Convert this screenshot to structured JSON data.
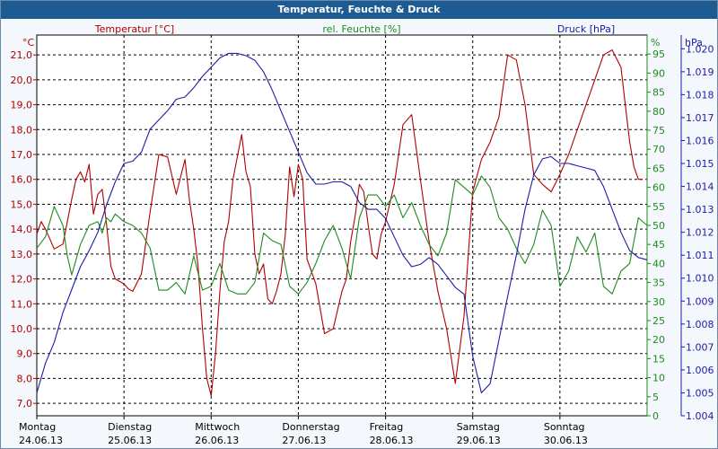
{
  "window": {
    "title": "Temperatur, Feuchte & Druck"
  },
  "colors": {
    "temp": "#b00000",
    "hum": "#1f8a1f",
    "press": "#1c1ca8",
    "grid": "#000000",
    "title_bg": "#1f5b93"
  },
  "chart_data": {
    "type": "line",
    "title": "Temperatur, Feuchte & Druck",
    "series_labels": {
      "temp": "Temperatur [°C]",
      "hum": "rel. Feuchte [%]",
      "press": "Druck [hPa]"
    },
    "units": {
      "temp": "°C",
      "hum": "%",
      "press": "hPa"
    },
    "axes": {
      "temp": {
        "min": 6.5,
        "max": 21.8,
        "ticks": [
          "7,0",
          "8,0",
          "9,0",
          "10,0",
          "11,0",
          "12,0",
          "13,0",
          "14,0",
          "15,0",
          "16,0",
          "17,0",
          "18,0",
          "19,0",
          "20,0",
          "21,0"
        ],
        "tick_values": [
          7,
          8,
          9,
          10,
          11,
          12,
          13,
          14,
          15,
          16,
          17,
          18,
          19,
          20,
          21
        ]
      },
      "hum": {
        "min": 0,
        "max": 100,
        "ticks": [
          "0",
          "5",
          "10",
          "15",
          "20",
          "25",
          "30",
          "35",
          "40",
          "45",
          "50",
          "55",
          "60",
          "65",
          "70",
          "75",
          "80",
          "85",
          "90",
          "95"
        ],
        "tick_values": [
          0,
          5,
          10,
          15,
          20,
          25,
          30,
          35,
          40,
          45,
          50,
          55,
          60,
          65,
          70,
          75,
          80,
          85,
          90,
          95
        ]
      },
      "press": {
        "min": 1004,
        "max": 1020.6,
        "ticks": [
          "1.004",
          "1.005",
          "1.006",
          "1.007",
          "1.008",
          "1.009",
          "1.010",
          "1.011",
          "1.012",
          "1.013",
          "1.014",
          "1.015",
          "1.016",
          "1.017",
          "1.018",
          "1.019",
          "1.020"
        ],
        "tick_values": [
          1004,
          1005,
          1006,
          1007,
          1008,
          1009,
          1010,
          1011,
          1012,
          1013,
          1014,
          1015,
          1016,
          1017,
          1018,
          1019,
          1020
        ]
      }
    },
    "x_range": [
      0,
      7.0
    ],
    "days": [
      {
        "name": "Montag",
        "date": "24.06.13"
      },
      {
        "name": "Dienstag",
        "date": "25.06.13"
      },
      {
        "name": "Mittwoch",
        "date": "26.06.13"
      },
      {
        "name": "Donnerstag",
        "date": "27.06.13"
      },
      {
        "name": "Freitag",
        "date": "28.06.13"
      },
      {
        "name": "Samstag",
        "date": "29.06.13"
      },
      {
        "name": "Sonntag",
        "date": "30.06.13"
      }
    ],
    "series": {
      "temp": {
        "name": "Temperatur [°C]",
        "x": [
          0,
          0.05,
          0.1,
          0.15,
          0.2,
          0.3,
          0.4,
          0.45,
          0.5,
          0.55,
          0.6,
          0.65,
          0.7,
          0.75,
          0.8,
          0.85,
          0.9,
          0.95,
          1.0,
          1.05,
          1.1,
          1.2,
          1.3,
          1.4,
          1.5,
          1.6,
          1.7,
          1.75,
          1.8,
          1.85,
          1.9,
          1.95,
          2.0,
          2.05,
          2.1,
          2.15,
          2.2,
          2.25,
          2.3,
          2.35,
          2.4,
          2.45,
          2.5,
          2.55,
          2.6,
          2.65,
          2.7,
          2.75,
          2.8,
          2.85,
          2.9,
          2.95,
          3.0,
          3.05,
          3.1,
          3.2,
          3.3,
          3.4,
          3.5,
          3.55,
          3.6,
          3.65,
          3.7,
          3.75,
          3.8,
          3.85,
          3.9,
          3.95,
          4.0,
          4.1,
          4.2,
          4.3,
          4.4,
          4.5,
          4.6,
          4.7,
          4.8,
          4.9,
          5.0,
          5.1,
          5.2,
          5.3,
          5.4,
          5.5,
          5.6,
          5.7,
          5.8,
          5.9,
          6.0,
          6.1,
          6.2,
          6.3,
          6.4,
          6.5,
          6.6,
          6.7,
          6.75,
          6.8,
          6.85,
          6.9,
          6.95
        ],
        "values": [
          13.8,
          14.3,
          14.0,
          13.6,
          13.2,
          13.4,
          15.2,
          16.0,
          16.3,
          15.9,
          16.6,
          14.6,
          15.4,
          15.6,
          14.2,
          12.5,
          12.0,
          11.9,
          11.8,
          11.6,
          11.5,
          12.2,
          14.7,
          17.0,
          16.9,
          15.4,
          16.8,
          15.2,
          14.0,
          12.5,
          10.0,
          8.0,
          7.3,
          9.0,
          11.5,
          13.5,
          14.3,
          16.0,
          16.9,
          17.8,
          16.3,
          15.7,
          13.0,
          12.2,
          12.6,
          11.2,
          11.0,
          11.5,
          12.2,
          13.8,
          16.5,
          15.3,
          16.6,
          16.0,
          12.8,
          11.8,
          9.8,
          10.0,
          11.5,
          12.0,
          13.5,
          14.5,
          15.8,
          15.5,
          14.2,
          13.0,
          12.8,
          13.8,
          14.3,
          15.8,
          18.2,
          18.6,
          16.0,
          13.5,
          11.5,
          10.0,
          7.8,
          10.5,
          15.5,
          16.8,
          17.5,
          18.5,
          21.0,
          20.8,
          19.0,
          16.2,
          15.8,
          15.5,
          16.2,
          17.0,
          18.0,
          19.0,
          20.0,
          21.0,
          21.2,
          20.5,
          19.0,
          17.5,
          16.5,
          16.0,
          16.0
        ]
      },
      "hum": {
        "name": "rel. Feuchte [%]",
        "x": [
          0,
          0.1,
          0.2,
          0.3,
          0.35,
          0.4,
          0.5,
          0.6,
          0.7,
          0.75,
          0.8,
          0.85,
          0.9,
          1.0,
          1.1,
          1.2,
          1.3,
          1.4,
          1.5,
          1.6,
          1.7,
          1.8,
          1.9,
          2.0,
          2.1,
          2.2,
          2.3,
          2.4,
          2.5,
          2.6,
          2.7,
          2.8,
          2.9,
          3.0,
          3.1,
          3.2,
          3.3,
          3.4,
          3.5,
          3.6,
          3.7,
          3.8,
          3.9,
          4.0,
          4.1,
          4.2,
          4.3,
          4.4,
          4.5,
          4.6,
          4.7,
          4.8,
          4.9,
          5.0,
          5.1,
          5.2,
          5.3,
          5.4,
          5.5,
          5.6,
          5.7,
          5.8,
          5.9,
          6.0,
          6.1,
          6.2,
          6.3,
          6.4,
          6.5,
          6.6,
          6.7,
          6.8,
          6.9,
          7.0
        ],
        "values": [
          44,
          47,
          55,
          50,
          42,
          37,
          45,
          50,
          51,
          48,
          52,
          51,
          53,
          51,
          50,
          48,
          44,
          33,
          33,
          35,
          32,
          42,
          33,
          34,
          40,
          33,
          32,
          32,
          35,
          48,
          46,
          45,
          34,
          32,
          35,
          40,
          46,
          50,
          44,
          36,
          52,
          58,
          58,
          55,
          58,
          52,
          56,
          50,
          45,
          42,
          48,
          62,
          60,
          58,
          63,
          60,
          52,
          49,
          44,
          40,
          45,
          54,
          50,
          34,
          38,
          47,
          43,
          48,
          34,
          32,
          38,
          40,
          52,
          50
        ]
      },
      "press": {
        "name": "Druck [hPa]",
        "x": [
          0,
          0.1,
          0.2,
          0.3,
          0.4,
          0.5,
          0.6,
          0.7,
          0.8,
          0.9,
          1.0,
          1.1,
          1.2,
          1.3,
          1.4,
          1.5,
          1.6,
          1.7,
          1.8,
          1.9,
          2.0,
          2.1,
          2.2,
          2.3,
          2.4,
          2.5,
          2.6,
          2.7,
          2.8,
          2.9,
          3.0,
          3.1,
          3.2,
          3.3,
          3.4,
          3.5,
          3.6,
          3.7,
          3.8,
          3.9,
          4.0,
          4.1,
          4.2,
          4.3,
          4.4,
          4.5,
          4.6,
          4.7,
          4.8,
          4.9,
          5.0,
          5.1,
          5.2,
          5.3,
          5.4,
          5.5,
          5.6,
          5.7,
          5.8,
          5.9,
          6.0,
          6.1,
          6.2,
          6.3,
          6.4,
          6.5,
          6.6,
          6.7,
          6.8,
          6.9,
          7.0
        ],
        "values": [
          1005.0,
          1006.3,
          1007.2,
          1008.5,
          1009.5,
          1010.5,
          1011.2,
          1012.0,
          1013.2,
          1014.2,
          1015.0,
          1015.1,
          1015.5,
          1016.5,
          1016.9,
          1017.3,
          1017.8,
          1017.9,
          1018.3,
          1018.8,
          1019.2,
          1019.6,
          1019.8,
          1019.8,
          1019.7,
          1019.5,
          1019.0,
          1018.2,
          1017.3,
          1016.4,
          1015.5,
          1014.6,
          1014.1,
          1014.1,
          1014.2,
          1014.2,
          1014.0,
          1013.3,
          1013.0,
          1013.0,
          1012.6,
          1011.8,
          1011.0,
          1010.5,
          1010.6,
          1010.9,
          1010.6,
          1010.1,
          1009.6,
          1009.3,
          1006.6,
          1005.0,
          1005.4,
          1007.3,
          1009.2,
          1011.0,
          1013.0,
          1014.5,
          1015.2,
          1015.3,
          1015.0,
          1015.0,
          1014.9,
          1014.8,
          1014.7,
          1014.0,
          1013.0,
          1012.0,
          1011.2,
          1010.9,
          1010.8
        ]
      }
    }
  }
}
